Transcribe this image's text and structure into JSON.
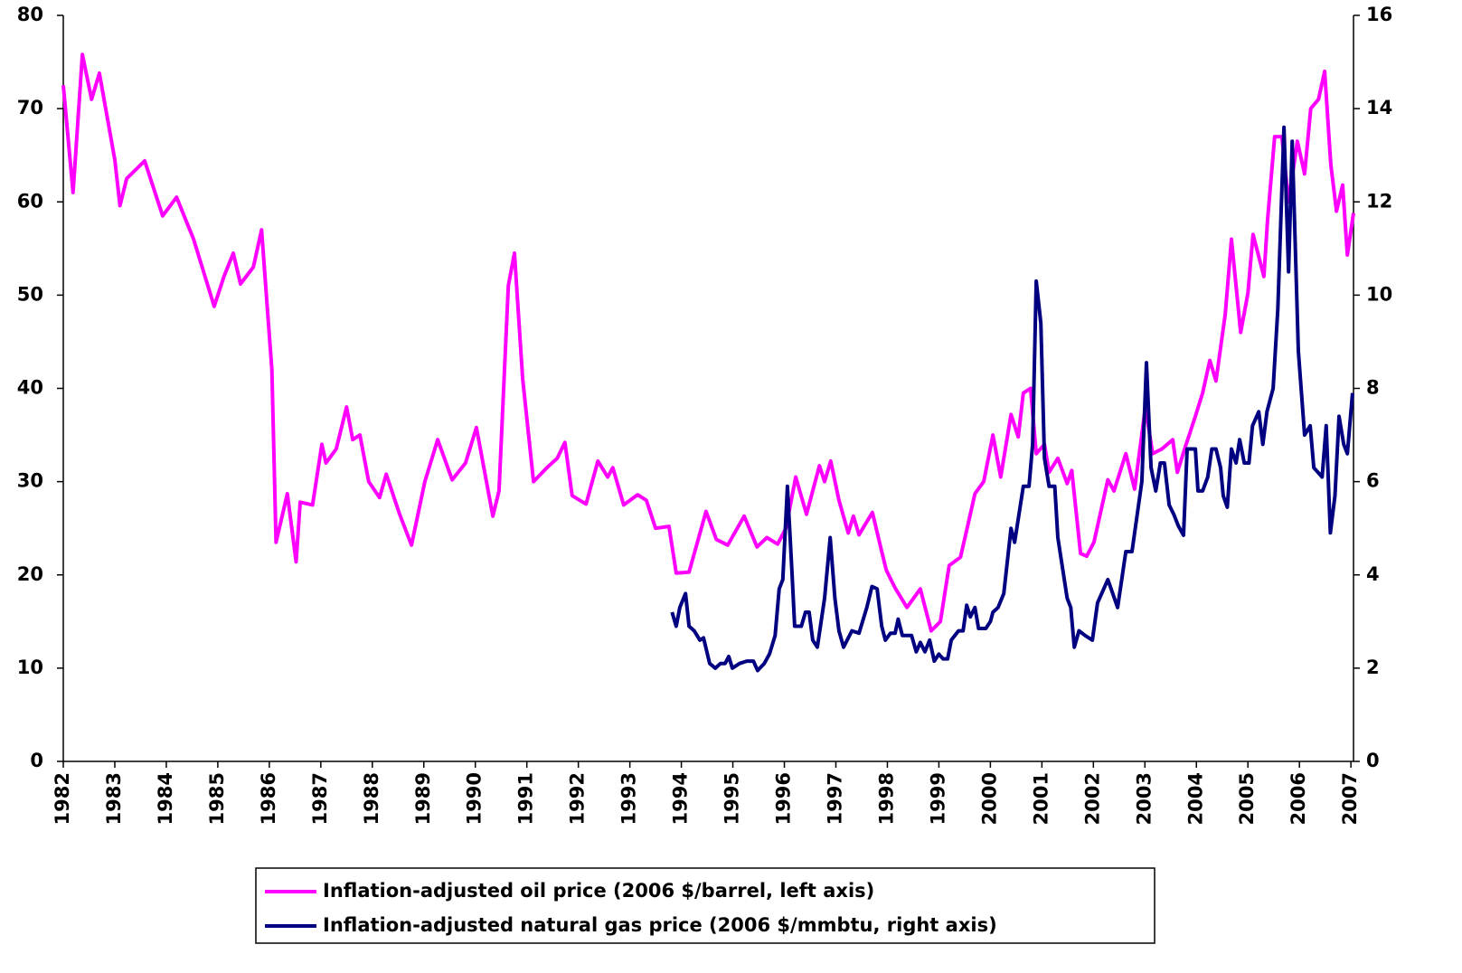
{
  "chart_data": {
    "type": "line",
    "xlim": [
      1982,
      2007.05
    ],
    "xticks": [
      1982,
      1983,
      1984,
      1985,
      1986,
      1987,
      1988,
      1989,
      1990,
      1991,
      1992,
      1993,
      1994,
      1995,
      1996,
      1997,
      1998,
      1999,
      2000,
      2001,
      2002,
      2003,
      2004,
      2005,
      2006,
      2007
    ],
    "ylim": [
      0,
      80
    ],
    "yticks": [
      0,
      10,
      20,
      30,
      40,
      50,
      60,
      70,
      80
    ],
    "y2lim": [
      0,
      16
    ],
    "y2ticks": [
      0,
      2,
      4,
      6,
      8,
      10,
      12,
      14,
      16
    ],
    "grid": false,
    "legend": "bottom",
    "series": [
      {
        "name": "Inflation-adjusted oil price (2006 $/barrel, left axis)",
        "color": "#ff00ff",
        "axis": "y",
        "x": [
          1982.0,
          1982.19,
          1982.37,
          1982.55,
          1982.7,
          1983.0,
          1983.1,
          1983.23,
          1983.58,
          1983.93,
          1984.2,
          1984.53,
          1984.93,
          1985.12,
          1985.3,
          1985.44,
          1985.69,
          1985.85,
          1986.05,
          1986.13,
          1986.35,
          1986.52,
          1986.6,
          1986.84,
          1987.02,
          1987.1,
          1987.3,
          1987.5,
          1987.62,
          1987.76,
          1987.93,
          1988.14,
          1988.27,
          1988.53,
          1988.76,
          1989.02,
          1989.27,
          1989.55,
          1989.81,
          1990.02,
          1990.34,
          1990.46,
          1990.64,
          1990.76,
          1990.92,
          1991.13,
          1991.39,
          1991.59,
          1991.74,
          1991.88,
          1992.15,
          1992.38,
          1992.57,
          1992.67,
          1992.88,
          1993.15,
          1993.32,
          1993.5,
          1993.76,
          1993.9,
          1994.15,
          1994.48,
          1994.68,
          1994.9,
          1995.22,
          1995.47,
          1995.66,
          1995.87,
          1996.03,
          1996.22,
          1996.43,
          1996.68,
          1996.78,
          1996.9,
          1997.06,
          1997.24,
          1997.34,
          1997.45,
          1997.71,
          1997.89,
          1997.98,
          1998.15,
          1998.38,
          1998.64,
          1998.85,
          1999.03,
          1999.2,
          1999.42,
          1999.59,
          1999.7,
          1999.87,
          2000.05,
          2000.2,
          2000.4,
          2000.54,
          2000.64,
          2000.78,
          2000.89,
          2001.05,
          2001.14,
          2001.31,
          2001.49,
          2001.58,
          2001.75,
          2001.87,
          2002.01,
          2002.28,
          2002.4,
          2002.63,
          2002.8,
          2003.01,
          2003.15,
          2003.33,
          2003.54,
          2003.63,
          2003.77,
          2003.98,
          2004.12,
          2004.26,
          2004.38,
          2004.56,
          2004.68,
          2004.86,
          2005.0,
          2005.1,
          2005.31,
          2005.38,
          2005.52,
          2005.66,
          2005.79,
          2005.96,
          2006.1,
          2006.22,
          2006.37,
          2006.49,
          2006.61,
          2006.72,
          2006.84,
          2006.93,
          2007.05
        ],
        "values": [
          72.5,
          61,
          75.8,
          71,
          73.8,
          64.5,
          59.6,
          62.5,
          64.4,
          58.5,
          60.5,
          56,
          48.8,
          52,
          54.5,
          51.2,
          53,
          57,
          42,
          23.5,
          28.7,
          21.4,
          27.8,
          27.5,
          34,
          32,
          33.5,
          38,
          34.5,
          35,
          30,
          28.3,
          30.8,
          26.5,
          23.2,
          30,
          34.5,
          30.2,
          32,
          35.8,
          26.3,
          29,
          51,
          54.5,
          41,
          30,
          31.5,
          32.5,
          34.2,
          28.5,
          27.6,
          32.2,
          30.5,
          31.5,
          27.5,
          28.6,
          28,
          25,
          25.2,
          20.2,
          20.3,
          26.8,
          23.8,
          23.2,
          26.3,
          23,
          24,
          23.3,
          25,
          30.5,
          26.5,
          31.7,
          30,
          32.2,
          28,
          24.5,
          26.3,
          24.3,
          26.7,
          22.5,
          20.5,
          18.6,
          16.5,
          18.5,
          14,
          15,
          21,
          21.9,
          26,
          28.7,
          30,
          35,
          30.5,
          37.2,
          34.8,
          39.5,
          40,
          33,
          34,
          31,
          32.5,
          29.8,
          31.2,
          22.3,
          22,
          23.5,
          30.2,
          29,
          33,
          29.2,
          38,
          33,
          33.5,
          34.5,
          31,
          33.5,
          37,
          39.5,
          43,
          40.8,
          48,
          56,
          46,
          50.2,
          56.5,
          52,
          58,
          67,
          67,
          60,
          66.5,
          63,
          70,
          71,
          74,
          64,
          59,
          61.8,
          54.3,
          58.8
        ]
      },
      {
        "name": "Inflation-adjusted natural gas price (2006 $/mmbtu, right axis)",
        "color": "#000080",
        "axis": "y2",
        "x": [
          1993.82,
          1993.9,
          1993.97,
          1994.08,
          1994.15,
          1994.25,
          1994.36,
          1994.43,
          1994.55,
          1994.66,
          1994.76,
          1994.85,
          1994.92,
          1994.99,
          1995.13,
          1995.27,
          1995.4,
          1995.48,
          1995.61,
          1995.71,
          1995.82,
          1995.9,
          1995.97,
          1996.06,
          1996.15,
          1996.2,
          1996.33,
          1996.41,
          1996.48,
          1996.55,
          1996.64,
          1996.78,
          1996.89,
          1996.98,
          1997.06,
          1997.15,
          1997.31,
          1997.45,
          1997.6,
          1997.7,
          1997.8,
          1997.89,
          1997.96,
          1998.06,
          1998.15,
          1998.21,
          1998.29,
          1998.47,
          1998.56,
          1998.64,
          1998.73,
          1998.82,
          1998.91,
          1999.0,
          1999.08,
          1999.17,
          1999.24,
          1999.38,
          1999.47,
          1999.54,
          1999.61,
          1999.7,
          1999.77,
          1999.91,
          2000.0,
          2000.05,
          2000.15,
          2000.26,
          2000.4,
          2000.47,
          2000.64,
          2000.75,
          2000.82,
          2000.89,
          2000.98,
          2001.05,
          2001.14,
          2001.25,
          2001.31,
          2001.49,
          2001.56,
          2001.63,
          2001.72,
          2001.84,
          2001.98,
          2002.08,
          2002.28,
          2002.47,
          2002.63,
          2002.75,
          2002.94,
          2003.03,
          2003.12,
          2003.21,
          2003.3,
          2003.38,
          2003.47,
          2003.56,
          2003.65,
          2003.75,
          2003.82,
          2003.98,
          2004.03,
          2004.12,
          2004.22,
          2004.3,
          2004.38,
          2004.47,
          2004.52,
          2004.6,
          2004.68,
          2004.77,
          2004.84,
          2004.93,
          2005.02,
          2005.09,
          2005.21,
          2005.29,
          2005.37,
          2005.49,
          2005.58,
          2005.7,
          2005.79,
          2005.86,
          2005.98,
          2006.1,
          2006.21,
          2006.28,
          2006.44,
          2006.52,
          2006.6,
          2006.69,
          2006.77,
          2006.86,
          2006.93,
          2007.03
        ],
        "values": [
          3.2,
          2.9,
          3.3,
          3.6,
          2.9,
          2.8,
          2.6,
          2.65,
          2.1,
          2.0,
          2.1,
          2.1,
          2.25,
          2.0,
          2.1,
          2.15,
          2.15,
          1.95,
          2.1,
          2.3,
          2.7,
          3.7,
          3.9,
          5.9,
          4.0,
          2.9,
          2.9,
          3.2,
          3.2,
          2.6,
          2.45,
          3.5,
          4.8,
          3.5,
          2.8,
          2.45,
          2.8,
          2.75,
          3.3,
          3.75,
          3.7,
          2.9,
          2.6,
          2.75,
          2.75,
          3.05,
          2.7,
          2.7,
          2.35,
          2.55,
          2.35,
          2.6,
          2.15,
          2.3,
          2.2,
          2.2,
          2.6,
          2.8,
          2.8,
          3.35,
          3.1,
          3.3,
          2.85,
          2.85,
          3.0,
          3.2,
          3.3,
          3.6,
          5.0,
          4.7,
          5.9,
          5.9,
          6.8,
          10.3,
          9.4,
          6.5,
          5.9,
          5.9,
          4.8,
          3.5,
          3.3,
          2.45,
          2.8,
          2.7,
          2.6,
          3.4,
          3.9,
          3.3,
          4.5,
          4.5,
          6.0,
          8.55,
          6.3,
          5.8,
          6.4,
          6.4,
          5.5,
          5.3,
          5.05,
          4.85,
          6.7,
          6.7,
          5.8,
          5.8,
          6.1,
          6.7,
          6.7,
          6.3,
          5.7,
          5.45,
          6.7,
          6.4,
          6.9,
          6.4,
          6.4,
          7.2,
          7.5,
          6.8,
          7.5,
          8.0,
          9.7,
          13.6,
          10.5,
          13.3,
          8.8,
          7.0,
          7.2,
          6.3,
          6.1,
          7.2,
          4.9,
          5.7,
          7.4,
          6.8,
          6.6,
          7.9
        ]
      }
    ]
  }
}
